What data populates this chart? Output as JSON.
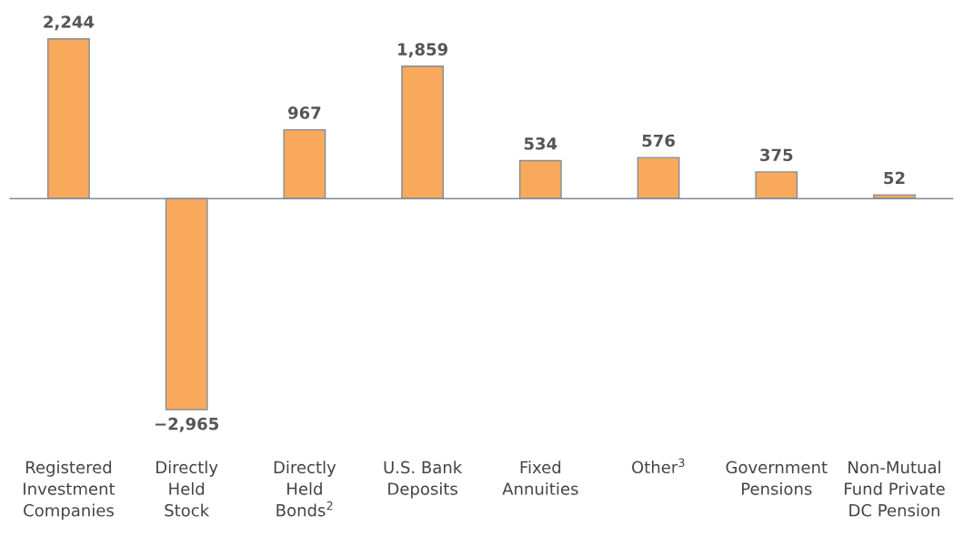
{
  "chart_data": {
    "type": "bar",
    "categories": [
      "Registered\nInvestment\nCompanies",
      "Directly\nHeld\nStock",
      "Directly\nHeld\nBonds$^{2}$",
      "U.S. Bank\nDeposits",
      "Fixed\nAnnuities",
      "Other$^{3}$",
      "Government\nPensions",
      "Non-Mutual\nFund Private\nDC Pension"
    ],
    "values": [
      2244,
      -2965,
      967,
      1859,
      534,
      576,
      375,
      52
    ],
    "value_labels": [
      "2,244",
      "−2,965",
      "967",
      "1,859",
      "534",
      "576",
      "375",
      "52"
    ],
    "color": "#f8a95c"
  }
}
